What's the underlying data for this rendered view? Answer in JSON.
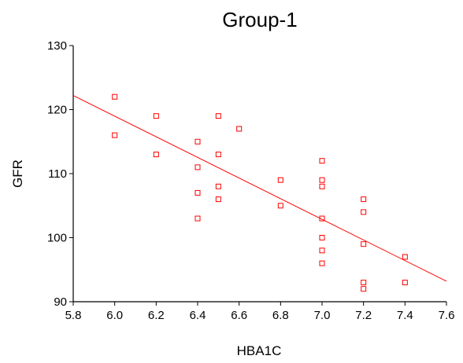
{
  "chart_data": {
    "type": "scatter",
    "title": "Group-1",
    "xlabel": "HBA1C",
    "ylabel": "GFR",
    "xlim": [
      5.8,
      7.6
    ],
    "ylim": [
      90,
      130
    ],
    "xticks": [
      "5.8",
      "6.0",
      "6.2",
      "6.4",
      "6.6",
      "6.8",
      "7.0",
      "7.2",
      "7.4",
      "7.6"
    ],
    "yticks": [
      "90",
      "100",
      "110",
      "120",
      "130"
    ],
    "grid": false,
    "legend": "none",
    "marker": "open-square",
    "color": "#ff0000",
    "points": [
      {
        "x": 6.0,
        "y": 122
      },
      {
        "x": 6.0,
        "y": 116
      },
      {
        "x": 6.2,
        "y": 119
      },
      {
        "x": 6.2,
        "y": 113
      },
      {
        "x": 6.4,
        "y": 115
      },
      {
        "x": 6.4,
        "y": 111
      },
      {
        "x": 6.4,
        "y": 107
      },
      {
        "x": 6.4,
        "y": 103
      },
      {
        "x": 6.5,
        "y": 119
      },
      {
        "x": 6.5,
        "y": 113
      },
      {
        "x": 6.5,
        "y": 108
      },
      {
        "x": 6.5,
        "y": 106
      },
      {
        "x": 6.6,
        "y": 117
      },
      {
        "x": 6.8,
        "y": 109
      },
      {
        "x": 6.8,
        "y": 105
      },
      {
        "x": 7.0,
        "y": 112
      },
      {
        "x": 7.0,
        "y": 109
      },
      {
        "x": 7.0,
        "y": 108
      },
      {
        "x": 7.0,
        "y": 103
      },
      {
        "x": 7.0,
        "y": 100
      },
      {
        "x": 7.0,
        "y": 98
      },
      {
        "x": 7.0,
        "y": 96
      },
      {
        "x": 7.2,
        "y": 106
      },
      {
        "x": 7.2,
        "y": 104
      },
      {
        "x": 7.2,
        "y": 99
      },
      {
        "x": 7.2,
        "y": 93
      },
      {
        "x": 7.2,
        "y": 92
      },
      {
        "x": 7.4,
        "y": 97
      },
      {
        "x": 7.4,
        "y": 93
      }
    ],
    "fit_line": {
      "x": [
        5.8,
        7.6
      ],
      "y": [
        122.2,
        93.2
      ]
    }
  }
}
